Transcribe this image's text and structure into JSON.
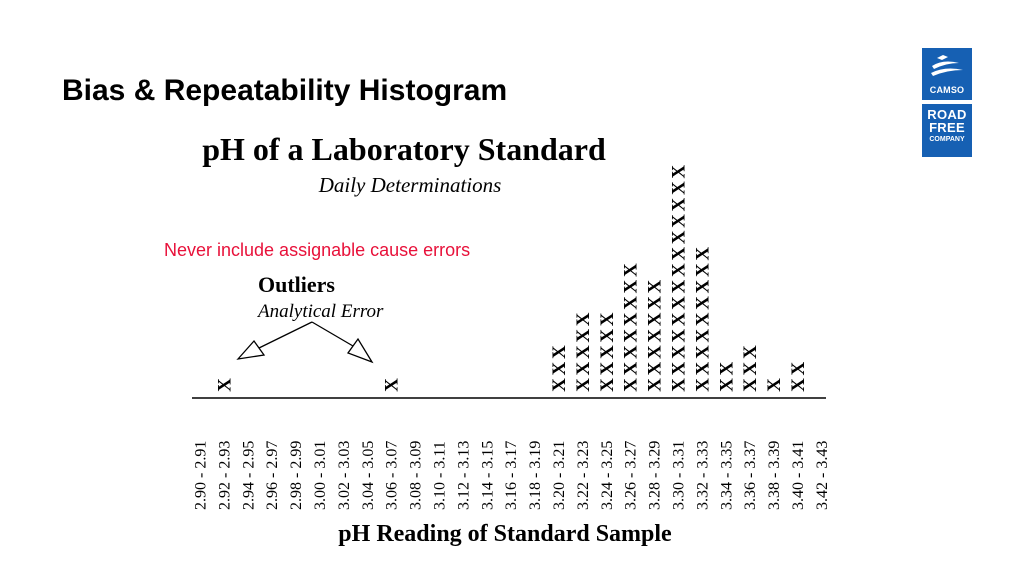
{
  "slide": {
    "title": "Bias & Repeatability Histogram"
  },
  "logos": {
    "camso": "CAMSO",
    "road_line1": "ROAD",
    "road_line2": "FREE",
    "road_line3": "COMPANY"
  },
  "colors": {
    "annotation": "#e8113a",
    "logo_bg": "#1660b3"
  },
  "chart_data": {
    "type": "bar",
    "style": "dot-plot with X marks",
    "title": "pH of a Laboratory Standard",
    "subtitle": "Daily Determinations",
    "xlabel": "pH Reading of Standard Sample",
    "ylabel": "",
    "categories": [
      "2.90 - 2.91",
      "2.92 - 2.93",
      "2.94 - 2.95",
      "2.96 - 2.97",
      "2.98 - 2.99",
      "3.00 - 3.01",
      "3.02 - 3.03",
      "3.04 - 3.05",
      "3.06 - 3.07",
      "3.08 - 3.09",
      "3.10 - 3.11",
      "3.12 - 3.13",
      "3.14 - 3.15",
      "3.16 - 3.17",
      "3.18 - 3.19",
      "3.20 - 3.21",
      "3.22 - 3.23",
      "3.24 - 3.25",
      "3.26 - 3.27",
      "3.28 - 3.29",
      "3.30 - 3.31",
      "3.32 - 3.33",
      "3.34 - 3.35",
      "3.36 - 3.37",
      "3.38 - 3.39",
      "3.40 - 3.41",
      "3.42 - 3.43"
    ],
    "values": [
      0,
      1,
      0,
      0,
      0,
      0,
      0,
      0,
      1,
      0,
      0,
      0,
      0,
      0,
      0,
      3,
      5,
      5,
      8,
      7,
      14,
      9,
      2,
      3,
      1,
      2,
      0
    ],
    "mark": "X",
    "grid": false,
    "legend": "none",
    "annotations": {
      "note": "Never include assignable cause errors",
      "outliers_title": "Outliers",
      "outliers_subtitle": "Analytical Error"
    }
  }
}
